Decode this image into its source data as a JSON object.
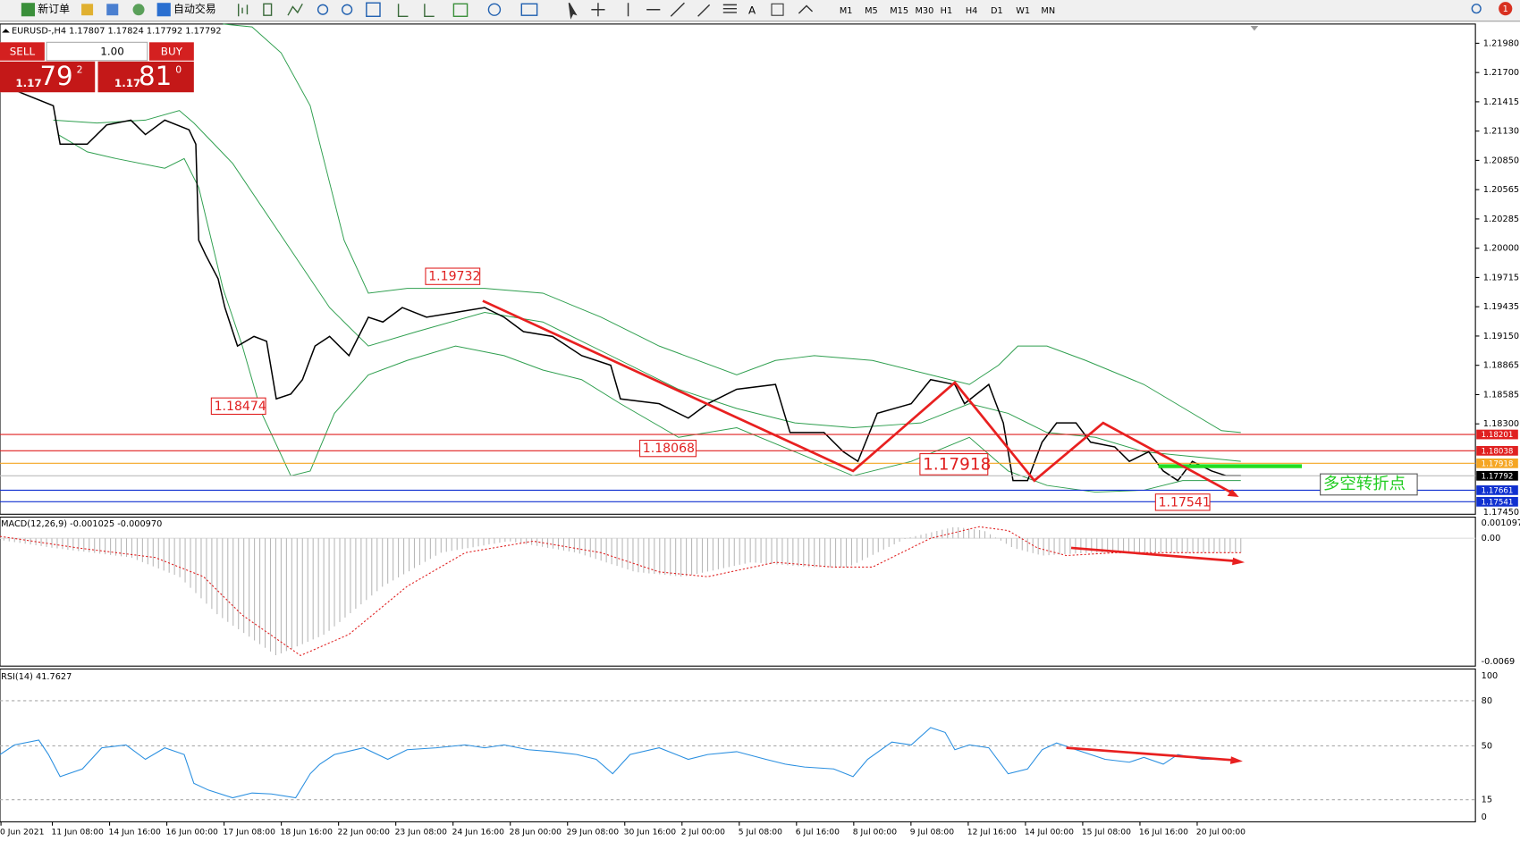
{
  "toolbar": {
    "new_order": "新订单",
    "auto_trading": "自动交易",
    "timeframes": [
      "M1",
      "M5",
      "M15",
      "M30",
      "H1",
      "H4",
      "D1",
      "W1",
      "MN"
    ],
    "alert_count": "1"
  },
  "symbol_header": "EURUSD-,H4  1.17807 1.17824 1.17792 1.17792",
  "trade_panel": {
    "sell": "SELL",
    "buy": "BUY",
    "lot": "1.00",
    "bid_prefix": "1.17",
    "bid_big": "79",
    "bid_sup": "2",
    "ask_prefix": "1.17",
    "ask_big": "81",
    "ask_sup": "0"
  },
  "price_axis": [
    "1.21980",
    "1.21700",
    "1.21415",
    "1.21130",
    "1.20850",
    "1.20565",
    "1.20285",
    "1.20000",
    "1.19715",
    "1.19435",
    "1.19150",
    "1.18865",
    "1.18585",
    "1.18300"
  ],
  "price_axis_bottom": "1.17450",
  "levels": [
    {
      "label": "1.18201",
      "color": "#e02020"
    },
    {
      "label": "1.18038",
      "color": "#e02020"
    },
    {
      "label": "1.17918",
      "color": "#f5a623"
    },
    {
      "label": "1.17792",
      "color": "#000000"
    },
    {
      "label": "1.17661",
      "color": "#1030d0"
    },
    {
      "label": "1.17541",
      "color": "#1030d0"
    }
  ],
  "annotations": {
    "high": "1.19732",
    "low1": "1.18474",
    "low2": "1.18068",
    "mid": "1.17918",
    "low3": "1.17541",
    "turning_point": "多空转折点"
  },
  "macd": {
    "label": "MACD(12,26,9) -0.001025 -0.000970",
    "axis": [
      "0.001097",
      "0.00",
      "-0.0069"
    ]
  },
  "rsi": {
    "label": "RSI(14) 41.7627",
    "axis": [
      "100",
      "80",
      "50",
      "15",
      "0"
    ]
  },
  "time_axis": [
    "0 Jun 2021",
    "11 Jun 08:00",
    "14 Jun 16:00",
    "16 Jun 00:00",
    "17 Jun 08:00",
    "18 Jun 16:00",
    "22 Jun 00:00",
    "23 Jun 08:00",
    "24 Jun 16:00",
    "28 Jun 00:00",
    "29 Jun 08:00",
    "30 Jun 16:00",
    "2 Jul 00:00",
    "5 Jul 08:00",
    "6 Jul 16:00",
    "8 Jul 00:00",
    "9 Jul 08:00",
    "12 Jul 16:00",
    "14 Jul 00:00",
    "15 Jul 08:00",
    "16 Jul 16:00",
    "20 Jul 00:00"
  ]
}
